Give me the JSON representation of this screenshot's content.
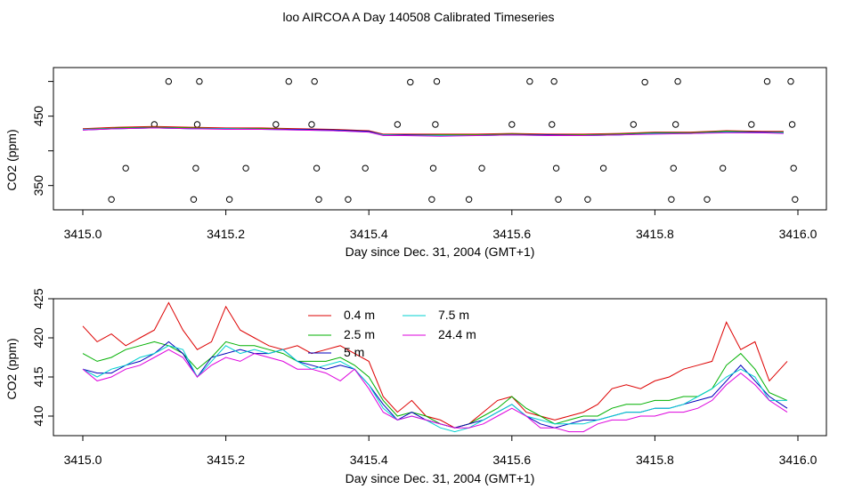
{
  "title": "loo AIRCOA A  Day 140508  Calibrated Timeseries",
  "colors": {
    "0.4 m": "#dd0000",
    "2.5 m": "#00b000",
    "5 m": "#0000bb",
    "7.5 m": "#00d0d0",
    "24.4 m": "#dd00dd",
    "flags": "#000000"
  },
  "chart_data": [
    {
      "type": "scatter",
      "xlabel": "Day since Dec. 31, 2004 (GMT+1)",
      "ylabel": "CO2 (ppm)",
      "xlim": [
        3415.0,
        3416.0
      ],
      "ylim": [
        315,
        520
      ],
      "x_ticks": [
        "3415.0",
        "3415.2",
        "3415.4",
        "3415.6",
        "3415.8",
        "3416.0"
      ],
      "y_ticks": [
        "350",
        "450"
      ],
      "grid": false,
      "legend": "none",
      "flag_points": {
        "x": [
          3415.04,
          3415.06,
          3415.1,
          3415.12,
          3415.155,
          3415.158,
          3415.16,
          3415.163,
          3415.205,
          3415.228,
          3415.27,
          3415.288,
          3415.32,
          3415.324,
          3415.327,
          3415.33,
          3415.371,
          3415.395,
          3415.44,
          3415.458,
          3415.488,
          3415.49,
          3415.493,
          3415.495,
          3415.54,
          3415.558,
          3415.6,
          3415.625,
          3415.656,
          3415.659,
          3415.662,
          3415.665,
          3415.706,
          3415.728,
          3415.77,
          3415.786,
          3415.823,
          3415.826,
          3415.829,
          3415.832,
          3415.873,
          3415.895,
          3415.935,
          3415.957,
          3415.99,
          3415.992,
          3415.994,
          3415.996
        ],
        "y": [
          330,
          375,
          438,
          500,
          330,
          375,
          438,
          500,
          330,
          375,
          438,
          500,
          438,
          500,
          375,
          330,
          330,
          375,
          438,
          499,
          330,
          375,
          438,
          500,
          330,
          375,
          438,
          500,
          438,
          500,
          375,
          330,
          330,
          375,
          438,
          499,
          330,
          375,
          438,
          500,
          330,
          375,
          438,
          500,
          500,
          438,
          375,
          330
        ]
      },
      "x": [
        3415.0,
        3415.05,
        3415.1,
        3415.15,
        3415.2,
        3415.25,
        3415.3,
        3415.35,
        3415.4,
        3415.42,
        3415.45,
        3415.5,
        3415.55,
        3415.6,
        3415.65,
        3415.7,
        3415.75,
        3415.8,
        3415.85,
        3415.9,
        3415.95,
        3415.98
      ],
      "series": [
        {
          "name": "0.4 m",
          "values": [
            432,
            434,
            435,
            434,
            433,
            433,
            432,
            431,
            429,
            424,
            424,
            424,
            424,
            425,
            424,
            424,
            425,
            427,
            427,
            429,
            428,
            428
          ]
        },
        {
          "name": "2.5 m",
          "values": [
            431,
            433,
            434,
            433,
            432,
            432,
            431,
            430,
            428,
            423,
            423,
            423,
            423,
            424,
            423,
            423,
            424,
            426,
            426,
            428,
            427,
            427
          ]
        },
        {
          "name": "5 m",
          "values": [
            430,
            432,
            433,
            432,
            432,
            431,
            431,
            430,
            428,
            423,
            423,
            422,
            422,
            423,
            423,
            422,
            423,
            425,
            425,
            427,
            427,
            426
          ]
        },
        {
          "name": "7.5 m",
          "values": [
            431,
            432,
            433,
            432,
            432,
            431,
            430,
            429,
            427,
            423,
            422,
            422,
            422,
            423,
            422,
            422,
            423,
            425,
            425,
            427,
            426,
            426
          ]
        },
        {
          "name": "24.4 m",
          "values": [
            430,
            432,
            433,
            432,
            431,
            431,
            430,
            429,
            427,
            422,
            422,
            421,
            422,
            423,
            422,
            422,
            423,
            424,
            425,
            426,
            426,
            425
          ]
        }
      ]
    },
    {
      "type": "line",
      "xlabel": "Day since Dec. 31, 2004 (GMT+1)",
      "ylabel": "CO2 (ppm)",
      "xlim": [
        3415.0,
        3416.0
      ],
      "ylim": [
        407.5,
        425
      ],
      "x_ticks": [
        "3415.0",
        "3415.2",
        "3415.4",
        "3415.6",
        "3415.8",
        "3416.0"
      ],
      "y_ticks": [
        "410",
        "415",
        "420",
        "425"
      ],
      "grid": false,
      "legend": "top-center",
      "x": [
        3415.0,
        3415.02,
        3415.04,
        3415.06,
        3415.08,
        3415.1,
        3415.12,
        3415.14,
        3415.16,
        3415.18,
        3415.2,
        3415.22,
        3415.24,
        3415.26,
        3415.28,
        3415.3,
        3415.32,
        3415.34,
        3415.36,
        3415.38,
        3415.4,
        3415.42,
        3415.44,
        3415.46,
        3415.48,
        3415.5,
        3415.52,
        3415.54,
        3415.56,
        3415.58,
        3415.6,
        3415.62,
        3415.64,
        3415.66,
        3415.68,
        3415.7,
        3415.72,
        3415.74,
        3415.76,
        3415.78,
        3415.8,
        3415.82,
        3415.84,
        3415.86,
        3415.88,
        3415.9,
        3415.92,
        3415.94,
        3415.96,
        3415.985
      ],
      "series": [
        {
          "name": "0.4 m",
          "values": [
            421.5,
            419.5,
            420.5,
            419.0,
            420.0,
            421.0,
            424.5,
            421.0,
            418.5,
            419.5,
            424.0,
            421.0,
            420.0,
            419.0,
            418.5,
            419.0,
            418.0,
            418.5,
            419.0,
            418.0,
            417.0,
            412.5,
            410.5,
            412.0,
            410.0,
            409.5,
            408.5,
            409.0,
            410.5,
            412.0,
            412.5,
            410.5,
            410.0,
            409.5,
            410.0,
            410.5,
            411.5,
            413.5,
            414.0,
            413.5,
            414.5,
            415.0,
            416.0,
            416.5,
            417.0,
            422.0,
            418.5,
            419.5,
            414.5,
            417.0
          ]
        },
        {
          "name": "2.5 m",
          "values": [
            418.0,
            417.0,
            417.5,
            418.5,
            419.0,
            419.5,
            419.0,
            418.0,
            416.0,
            417.5,
            419.5,
            419.0,
            419.0,
            418.5,
            418.0,
            417.0,
            417.0,
            417.0,
            417.5,
            416.5,
            415.0,
            412.0,
            410.0,
            410.5,
            410.0,
            409.0,
            408.5,
            409.0,
            410.0,
            411.0,
            412.5,
            411.0,
            410.0,
            409.0,
            409.5,
            410.0,
            410.0,
            411.0,
            411.5,
            411.5,
            412.0,
            412.0,
            412.5,
            412.5,
            413.5,
            416.5,
            418.0,
            416.0,
            413.0,
            412.0
          ]
        },
        {
          "name": "5 m",
          "values": [
            416.0,
            415.5,
            415.5,
            416.5,
            417.0,
            418.0,
            419.5,
            418.0,
            415.0,
            417.5,
            418.0,
            418.5,
            418.0,
            418.0,
            418.5,
            417.0,
            416.5,
            416.0,
            416.5,
            416.0,
            414.0,
            411.5,
            409.5,
            410.5,
            409.5,
            409.0,
            408.5,
            409.0,
            409.5,
            410.5,
            411.5,
            410.0,
            409.0,
            408.5,
            409.0,
            409.5,
            409.5,
            410.0,
            410.5,
            410.5,
            411.0,
            411.0,
            411.5,
            412.0,
            412.5,
            414.5,
            416.5,
            414.5,
            412.5,
            411.0
          ]
        },
        {
          "name": "7.5 m",
          "values": [
            416.0,
            415.0,
            416.0,
            416.5,
            417.5,
            418.0,
            419.0,
            418.5,
            415.0,
            417.0,
            419.0,
            418.0,
            418.5,
            418.0,
            418.5,
            417.0,
            416.0,
            416.5,
            417.0,
            416.0,
            414.0,
            411.0,
            409.5,
            410.0,
            409.5,
            408.5,
            408.0,
            408.5,
            409.5,
            410.5,
            411.5,
            410.0,
            409.5,
            409.0,
            409.0,
            409.0,
            409.5,
            410.0,
            410.5,
            410.5,
            411.0,
            411.0,
            411.5,
            412.5,
            413.5,
            415.0,
            416.0,
            415.0,
            412.0,
            412.0
          ]
        },
        {
          "name": "24.4 m",
          "values": [
            416.0,
            414.5,
            415.0,
            416.0,
            416.5,
            417.5,
            418.5,
            417.5,
            415.0,
            416.5,
            417.5,
            417.0,
            418.0,
            417.5,
            417.0,
            416.0,
            416.0,
            415.5,
            414.5,
            416.0,
            413.5,
            410.5,
            409.5,
            410.0,
            409.5,
            409.0,
            408.5,
            408.5,
            409.0,
            410.0,
            411.0,
            410.0,
            408.5,
            408.5,
            408.0,
            408.0,
            409.0,
            409.5,
            409.5,
            410.0,
            410.0,
            410.5,
            410.5,
            411.0,
            412.0,
            414.0,
            415.5,
            414.0,
            412.0,
            410.5
          ]
        }
      ]
    }
  ]
}
